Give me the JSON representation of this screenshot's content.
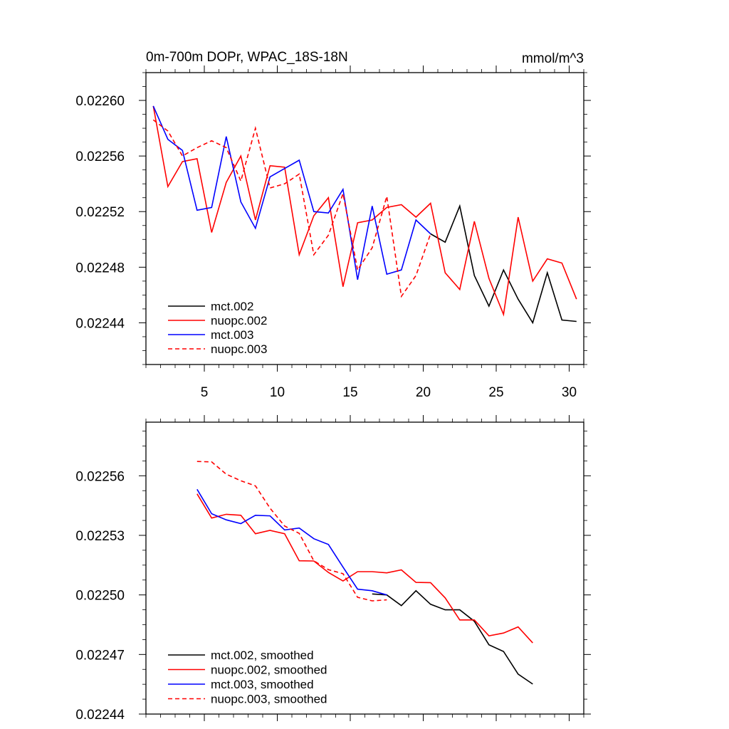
{
  "chart_data": [
    {
      "type": "line",
      "title": "0m-700m DOPr, WPAC_18S-18N",
      "units": "mmol/m^3",
      "xlim": [
        1,
        31
      ],
      "ylim": [
        0.02241,
        0.02262
      ],
      "x_ticks": [
        5,
        10,
        15,
        20,
        25,
        30
      ],
      "x_tick_labels": [
        "5",
        "10",
        "15",
        "20",
        "25",
        "30"
      ],
      "y_ticks": [
        0.0226,
        0.02256,
        0.02252,
        0.02248,
        0.02244
      ],
      "y_tick_labels": [
        "0.02260",
        "0.02256",
        "0.02252",
        "0.02248",
        "0.02244"
      ],
      "legend_position": "bottom-left",
      "series": [
        {
          "name": "mct.002",
          "color": "#000000",
          "dash": "solid",
          "x": [
            20.5,
            21.5,
            22.5,
            23.5,
            24.5,
            25.5,
            26.5,
            27.5,
            28.5,
            29.5,
            30.5
          ],
          "values": [
            0.022504,
            0.022498,
            0.022524,
            0.022474,
            0.022452,
            0.022478,
            0.022457,
            0.02244,
            0.022476,
            0.022442,
            0.022441
          ]
        },
        {
          "name": "nuopc.002",
          "color": "#ff0000",
          "dash": "solid",
          "x": [
            1.5,
            2.5,
            3.5,
            4.5,
            5.5,
            6.5,
            7.5,
            8.5,
            9.5,
            10.5,
            11.5,
            12.5,
            13.5,
            14.5,
            15.5,
            16.5,
            17.5,
            18.5,
            19.5,
            20.5,
            21.5,
            22.5,
            23.5,
            24.5,
            25.5,
            26.5,
            27.5,
            28.5,
            29.5,
            30.5
          ],
          "values": [
            0.022596,
            0.022538,
            0.022556,
            0.022558,
            0.022505,
            0.022541,
            0.02256,
            0.022514,
            0.022553,
            0.022552,
            0.022489,
            0.022517,
            0.02253,
            0.022466,
            0.022512,
            0.022514,
            0.022523,
            0.022525,
            0.022516,
            0.022526,
            0.022476,
            0.022464,
            0.022513,
            0.022472,
            0.022446,
            0.022516,
            0.02247,
            0.022486,
            0.022483,
            0.022457
          ]
        },
        {
          "name": "mct.003",
          "color": "#0000ff",
          "dash": "solid",
          "x": [
            1.5,
            2.5,
            3.5,
            4.5,
            5.5,
            6.5,
            7.5,
            8.5,
            9.5,
            10.5,
            11.5,
            12.5,
            13.5,
            14.5,
            15.5,
            16.5,
            17.5,
            18.5,
            19.5,
            20.5
          ],
          "values": [
            0.022596,
            0.022572,
            0.022564,
            0.022521,
            0.022523,
            0.022574,
            0.022527,
            0.022508,
            0.022545,
            0.022551,
            0.022557,
            0.02252,
            0.022519,
            0.022536,
            0.022471,
            0.022524,
            0.022475,
            0.022478,
            0.022514,
            0.022504
          ]
        },
        {
          "name": "nuopc.003",
          "color": "#ff0000",
          "dash": "dashed",
          "x": [
            1.5,
            2.5,
            3.5,
            4.5,
            5.5,
            6.5,
            7.5,
            8.5,
            9.5,
            10.5,
            11.5,
            12.5,
            13.5,
            14.5,
            15.5,
            16.5,
            17.5,
            18.5,
            19.5,
            20.5
          ],
          "values": [
            0.022586,
            0.022578,
            0.02256,
            0.022566,
            0.022571,
            0.022566,
            0.022542,
            0.02258,
            0.022537,
            0.02254,
            0.022547,
            0.022489,
            0.022503,
            0.022533,
            0.022478,
            0.022494,
            0.022531,
            0.022459,
            0.022474,
            0.022504
          ]
        }
      ]
    },
    {
      "type": "line",
      "title": "",
      "xlim": [
        1,
        31
      ],
      "ylim": [
        0.02244,
        0.022587
      ],
      "x_ticks": [
        5,
        10,
        15,
        20,
        25,
        30
      ],
      "y_ticks": [
        0.02256,
        0.02253,
        0.0225,
        0.02247,
        0.02244
      ],
      "y_tick_labels": [
        "0.02256",
        "0.02253",
        "0.02250",
        "0.02247",
        "0.02244"
      ],
      "legend_position": "bottom-left",
      "series": [
        {
          "name": "mct.002, smoothed",
          "color": "#000000",
          "dash": "solid",
          "x": [
            16.5,
            17.5,
            18.5,
            19.5,
            20.5,
            21.5,
            22.5,
            23.5,
            24.5,
            25.5,
            26.5,
            27.5
          ],
          "values": [
            0.0225005,
            0.0225,
            0.0224946,
            0.0225021,
            0.0224953,
            0.0224925,
            0.0224925,
            0.0224867,
            0.0224749,
            0.0224715,
            0.0224601,
            0.0224551
          ]
        },
        {
          "name": "nuopc.002, smoothed",
          "color": "#ff0000",
          "dash": "solid",
          "x": [
            4.5,
            5.5,
            6.5,
            7.5,
            8.5,
            9.5,
            10.5,
            11.5,
            12.5,
            13.5,
            14.5,
            15.5,
            16.5,
            17.5,
            18.5,
            19.5,
            20.5,
            21.5,
            22.5,
            23.5,
            24.5,
            25.5,
            26.5,
            27.5
          ],
          "values": [
            0.0225509,
            0.0225387,
            0.0225406,
            0.0225401,
            0.0225308,
            0.0225325,
            0.0225308,
            0.0225172,
            0.0225171,
            0.0225113,
            0.022507,
            0.0225117,
            0.0225117,
            0.0225111,
            0.0225126,
            0.0225063,
            0.0225062,
            0.0224985,
            0.0224874,
            0.0224874,
            0.0224794,
            0.0224808,
            0.0224839,
            0.0224758
          ]
        },
        {
          "name": "mct.003, smoothed",
          "color": "#0000ff",
          "dash": "solid",
          "x": [
            4.5,
            5.5,
            6.5,
            7.5,
            8.5,
            9.5,
            10.5,
            11.5,
            12.5,
            13.5,
            14.5,
            15.5,
            16.5,
            17.5
          ],
          "values": [
            0.0225532,
            0.0225409,
            0.0225378,
            0.0225359,
            0.0225401,
            0.0225398,
            0.0225327,
            0.0225337,
            0.0225283,
            0.0225254,
            0.022514,
            0.0225029,
            0.0225021,
            0.0225
          ]
        },
        {
          "name": "nuopc.003, smoothed",
          "color": "#ff0000",
          "dash": "dashed",
          "x": [
            4.5,
            5.5,
            6.5,
            7.5,
            8.5,
            9.5,
            10.5,
            11.5,
            12.5,
            13.5,
            14.5,
            15.5,
            16.5,
            17.5
          ],
          "values": [
            0.0225672,
            0.022567,
            0.0225608,
            0.0225575,
            0.0225549,
            0.0225437,
            0.0225347,
            0.022531,
            0.0225172,
            0.0225127,
            0.0225107,
            0.0224988,
            0.022497,
            0.0224975
          ]
        }
      ]
    }
  ]
}
